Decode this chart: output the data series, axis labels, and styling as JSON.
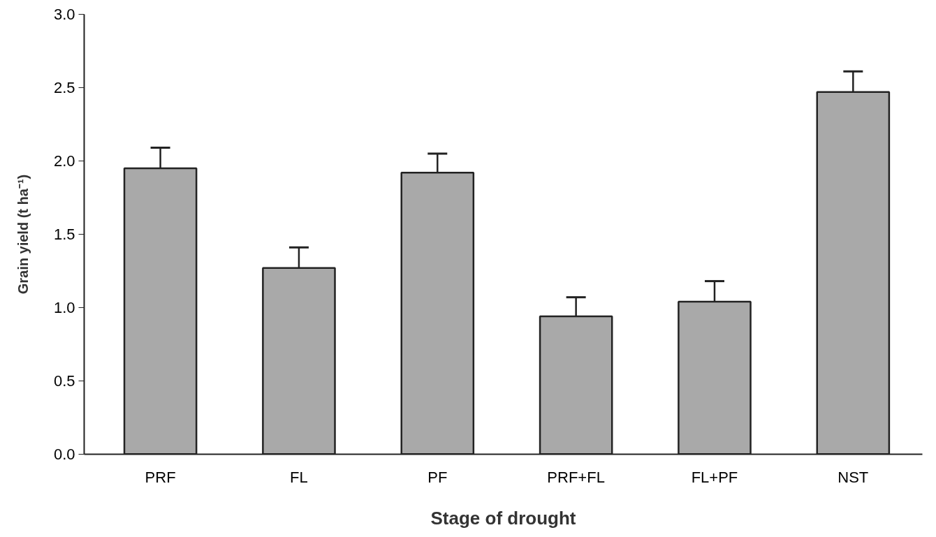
{
  "chart_data": {
    "type": "bar",
    "xlabel": "Stage of drought",
    "ylabel": "Grain yield (t ha⁻¹)",
    "categories": [
      "PRF",
      "FL",
      "PF",
      "PRF+FL",
      "FL+PF",
      "NST"
    ],
    "values": [
      1.95,
      1.27,
      1.92,
      0.94,
      1.04,
      2.47
    ],
    "errors": [
      [
        1.95,
        2.09
      ],
      [
        1.27,
        1.41
      ],
      [
        1.92,
        2.05
      ],
      [
        0.94,
        1.07
      ],
      [
        1.04,
        1.18
      ],
      [
        2.47,
        2.61
      ]
    ],
    "color": "#a9a9a9",
    "ylim": [
      0,
      3.0
    ],
    "yticks": [
      {
        "value": 0,
        "label": "0.0"
      },
      {
        "value": 0.5,
        "label": "0.5"
      },
      {
        "value": 1,
        "label": "1.0"
      },
      {
        "value": 1.5,
        "label": "1.5"
      },
      {
        "value": 2,
        "label": "2.0"
      },
      {
        "value": 2.5,
        "label": "2.5"
      },
      {
        "value": 3,
        "label": "3.0"
      }
    ],
    "grid": false
  }
}
